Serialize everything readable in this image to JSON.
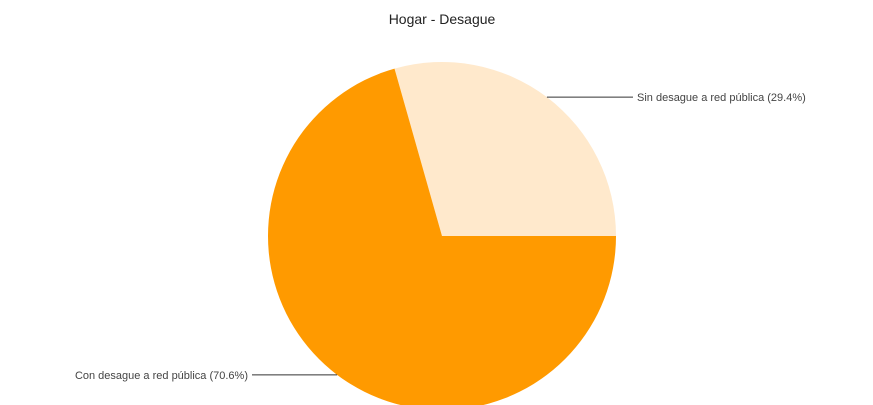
{
  "chart_data": {
    "type": "pie",
    "title": "Hogar - Desague",
    "slices": [
      {
        "label": "Sin desague a red pública",
        "value": 29.4,
        "display": "Sin desague a red pública (29.4%)",
        "color": "#FFE9CC"
      },
      {
        "label": "Con desague a red pública",
        "value": 70.6,
        "display": "Con desague a red pública (70.6%)",
        "color": "#FF9A00"
      }
    ],
    "legend": "none"
  }
}
